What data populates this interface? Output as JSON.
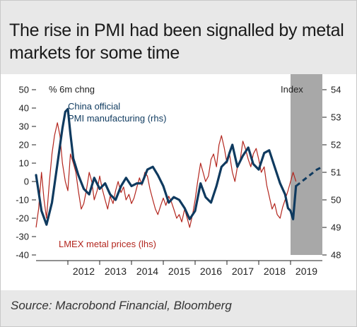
{
  "title": "The rise in PMI had been signalled by metal markets for some time",
  "source": "Source: Macrobond Financial, Bloomberg",
  "colors": {
    "pmi": "#0f3a5f",
    "lmex": "#b3261e",
    "shade": "#a8a8a8",
    "band": "#e8e8e8"
  },
  "chart_data": {
    "type": "line",
    "left_axis_label": "% 6m chng",
    "right_axis_label": "Index",
    "ylim_left": [
      -40,
      50
    ],
    "ylim_right": [
      48,
      54
    ],
    "left_ticks": [
      "50",
      "40",
      "30",
      "20",
      "10",
      "0",
      "-10",
      "-20",
      "-30",
      "-40"
    ],
    "right_ticks": [
      "54",
      "53",
      "52",
      "51",
      "50",
      "49",
      "48"
    ],
    "x_ticks": [
      "2012",
      "2013",
      "2014",
      "2015",
      "2016",
      "2017",
      "2018",
      "2019"
    ],
    "shaded_region_start": 2019.0,
    "series": [
      {
        "name": "China official PMI manufacturing (rhs)",
        "axis": "right",
        "points": [
          [
            2011.0,
            50.9
          ],
          [
            2011.17,
            49.6
          ],
          [
            2011.33,
            49.1
          ],
          [
            2011.5,
            49.9
          ],
          [
            2011.67,
            51.3
          ],
          [
            2011.83,
            52.6
          ],
          [
            2011.92,
            53.2
          ],
          [
            2012.0,
            53.3
          ],
          [
            2012.08,
            52.4
          ],
          [
            2012.17,
            51.5
          ],
          [
            2012.33,
            50.9
          ],
          [
            2012.5,
            50.4
          ],
          [
            2012.67,
            50.2
          ],
          [
            2012.83,
            50.8
          ],
          [
            2013.0,
            50.4
          ],
          [
            2013.17,
            50.6
          ],
          [
            2013.33,
            50.2
          ],
          [
            2013.5,
            50.0
          ],
          [
            2013.67,
            50.5
          ],
          [
            2013.83,
            50.8
          ],
          [
            2014.0,
            50.5
          ],
          [
            2014.17,
            50.6
          ],
          [
            2014.33,
            50.6
          ],
          [
            2014.5,
            51.1
          ],
          [
            2014.67,
            51.2
          ],
          [
            2014.83,
            50.9
          ],
          [
            2015.0,
            50.5
          ],
          [
            2015.17,
            49.9
          ],
          [
            2015.33,
            50.1
          ],
          [
            2015.5,
            50.0
          ],
          [
            2015.67,
            49.7
          ],
          [
            2015.83,
            49.3
          ],
          [
            2016.0,
            49.6
          ],
          [
            2016.17,
            50.6
          ],
          [
            2016.33,
            50.1
          ],
          [
            2016.5,
            49.9
          ],
          [
            2016.67,
            50.5
          ],
          [
            2016.83,
            51.2
          ],
          [
            2017.0,
            51.4
          ],
          [
            2017.08,
            51.7
          ],
          [
            2017.17,
            52.0
          ],
          [
            2017.33,
            51.2
          ],
          [
            2017.5,
            51.6
          ],
          [
            2017.67,
            51.9
          ],
          [
            2017.83,
            51.3
          ],
          [
            2018.0,
            51.1
          ],
          [
            2018.17,
            51.7
          ],
          [
            2018.33,
            51.8
          ],
          [
            2018.5,
            51.2
          ],
          [
            2018.67,
            50.6
          ],
          [
            2018.83,
            50.2
          ],
          [
            2018.92,
            49.7
          ],
          [
            2019.0,
            49.6
          ],
          [
            2019.08,
            49.3
          ],
          [
            2019.17,
            50.5
          ]
        ]
      },
      {
        "name": "PMI projection",
        "axis": "right",
        "dashed": true,
        "points": [
          [
            2019.17,
            50.5
          ],
          [
            2019.5,
            50.8
          ],
          [
            2019.83,
            51.1
          ],
          [
            2020.0,
            51.2
          ]
        ]
      },
      {
        "name": "LMEX metal prices (lhs)",
        "axis": "left",
        "points": [
          [
            2011.0,
            -25
          ],
          [
            2011.08,
            -15
          ],
          [
            2011.17,
            5
          ],
          [
            2011.25,
            -10
          ],
          [
            2011.33,
            -20
          ],
          [
            2011.42,
            0
          ],
          [
            2011.5,
            15
          ],
          [
            2011.58,
            25
          ],
          [
            2011.67,
            32
          ],
          [
            2011.75,
            25
          ],
          [
            2011.83,
            10
          ],
          [
            2011.92,
            0
          ],
          [
            2012.0,
            -5
          ],
          [
            2012.08,
            15
          ],
          [
            2012.17,
            10
          ],
          [
            2012.25,
            5
          ],
          [
            2012.33,
            -5
          ],
          [
            2012.42,
            -15
          ],
          [
            2012.5,
            -12
          ],
          [
            2012.58,
            -5
          ],
          [
            2012.67,
            5
          ],
          [
            2012.75,
            0
          ],
          [
            2012.83,
            -10
          ],
          [
            2012.92,
            -5
          ],
          [
            2013.0,
            3
          ],
          [
            2013.08,
            -4
          ],
          [
            2013.17,
            -10
          ],
          [
            2013.25,
            -15
          ],
          [
            2013.33,
            -8
          ],
          [
            2013.42,
            -12
          ],
          [
            2013.5,
            -5
          ],
          [
            2013.58,
            0
          ],
          [
            2013.67,
            -6
          ],
          [
            2013.75,
            -3
          ],
          [
            2013.83,
            -10
          ],
          [
            2013.92,
            -7
          ],
          [
            2014.0,
            -12
          ],
          [
            2014.08,
            -9
          ],
          [
            2014.17,
            -3
          ],
          [
            2014.25,
            2
          ],
          [
            2014.33,
            -2
          ],
          [
            2014.42,
            5
          ],
          [
            2014.5,
            3
          ],
          [
            2014.58,
            -4
          ],
          [
            2014.67,
            -10
          ],
          [
            2014.75,
            -15
          ],
          [
            2014.83,
            -18
          ],
          [
            2014.92,
            -13
          ],
          [
            2015.0,
            -9
          ],
          [
            2015.08,
            -13
          ],
          [
            2015.17,
            -8
          ],
          [
            2015.25,
            -11
          ],
          [
            2015.33,
            -15
          ],
          [
            2015.42,
            -20
          ],
          [
            2015.5,
            -18
          ],
          [
            2015.58,
            -22
          ],
          [
            2015.67,
            -15
          ],
          [
            2015.75,
            -20
          ],
          [
            2015.83,
            -25
          ],
          [
            2015.92,
            -18
          ],
          [
            2016.0,
            -10
          ],
          [
            2016.08,
            0
          ],
          [
            2016.17,
            10
          ],
          [
            2016.25,
            5
          ],
          [
            2016.33,
            0
          ],
          [
            2016.42,
            3
          ],
          [
            2016.5,
            12
          ],
          [
            2016.58,
            15
          ],
          [
            2016.67,
            8
          ],
          [
            2016.75,
            20
          ],
          [
            2016.83,
            25
          ],
          [
            2016.92,
            18
          ],
          [
            2017.0,
            10
          ],
          [
            2017.08,
            15
          ],
          [
            2017.17,
            5
          ],
          [
            2017.25,
            0
          ],
          [
            2017.33,
            8
          ],
          [
            2017.42,
            12
          ],
          [
            2017.5,
            22
          ],
          [
            2017.58,
            18
          ],
          [
            2017.67,
            12
          ],
          [
            2017.75,
            8
          ],
          [
            2017.83,
            15
          ],
          [
            2017.92,
            18
          ],
          [
            2018.0,
            12
          ],
          [
            2018.08,
            5
          ],
          [
            2018.17,
            8
          ],
          [
            2018.25,
            -2
          ],
          [
            2018.33,
            -8
          ],
          [
            2018.42,
            -15
          ],
          [
            2018.5,
            -12
          ],
          [
            2018.58,
            -18
          ],
          [
            2018.67,
            -20
          ],
          [
            2018.75,
            -14
          ],
          [
            2018.83,
            -10
          ],
          [
            2018.92,
            -5
          ],
          [
            2019.0,
            0
          ],
          [
            2019.08,
            5
          ],
          [
            2019.17,
            0
          ]
        ]
      }
    ]
  }
}
